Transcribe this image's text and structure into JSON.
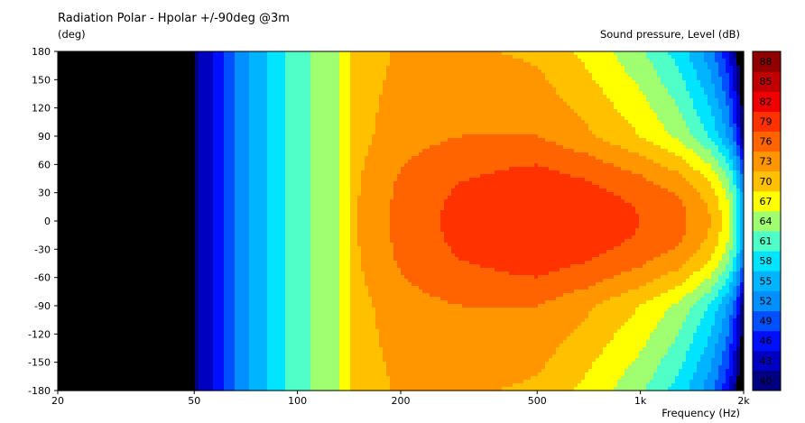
{
  "chart_data": {
    "type": "heatmap",
    "title": "Radiation Polar - Hpolar +/-90deg @3m",
    "y_unit_label": "(deg)",
    "colorbar_label": "Sound pressure, Level  (dB)",
    "xlabel": "Frequency  (Hz)",
    "x_scale": "log",
    "xlim": [
      20,
      2000
    ],
    "ylim": [
      -180,
      180
    ],
    "x_ticks": [
      {
        "value": 20,
        "label": "20"
      },
      {
        "value": 50,
        "label": "50"
      },
      {
        "value": 100,
        "label": "100"
      },
      {
        "value": 200,
        "label": "200"
      },
      {
        "value": 500,
        "label": "500"
      },
      {
        "value": 1000,
        "label": "1k"
      },
      {
        "value": 2000,
        "label": "2k"
      }
    ],
    "y_ticks": [
      {
        "value": 180,
        "label": "180"
      },
      {
        "value": 150,
        "label": "150"
      },
      {
        "value": 120,
        "label": "120"
      },
      {
        "value": 90,
        "label": "90"
      },
      {
        "value": 60,
        "label": "60"
      },
      {
        "value": 30,
        "label": "30"
      },
      {
        "value": 0,
        "label": "0"
      },
      {
        "value": -30,
        "label": "-30"
      },
      {
        "value": -60,
        "label": "-60"
      },
      {
        "value": -90,
        "label": "-90"
      },
      {
        "value": -120,
        "label": "-120"
      },
      {
        "value": -150,
        "label": "-150"
      },
      {
        "value": -180,
        "label": "-180"
      }
    ],
    "colorbar": {
      "levels": [
        40,
        43,
        46,
        49,
        52,
        55,
        58,
        61,
        64,
        67,
        70,
        73,
        76,
        79,
        82,
        85,
        88
      ],
      "colors": [
        "#000080",
        "#0000c0",
        "#0010ff",
        "#0050ff",
        "#0090ff",
        "#00b4ff",
        "#00e4ff",
        "#50ffc8",
        "#a0ff70",
        "#ffff00",
        "#ffc000",
        "#ff9600",
        "#ff6400",
        "#ff3200",
        "#f00000",
        "#c00000",
        "#900000"
      ],
      "below_color": "#000000"
    },
    "frequency_profile": [
      {
        "f": 20,
        "db": 20
      },
      {
        "f": 49,
        "db": 20
      },
      {
        "f": 51,
        "db": 43
      },
      {
        "f": 56,
        "db": 45
      },
      {
        "f": 64,
        "db": 51
      },
      {
        "f": 74,
        "db": 56
      },
      {
        "f": 85,
        "db": 59
      },
      {
        "f": 95,
        "db": 62
      },
      {
        "f": 110,
        "db": 64
      },
      {
        "f": 125,
        "db": 66
      },
      {
        "f": 140,
        "db": 68
      },
      {
        "f": 150,
        "db": 73
      },
      {
        "f": 200,
        "db": 77
      },
      {
        "f": 300,
        "db": 80
      },
      {
        "f": 500,
        "db": 82
      },
      {
        "f": 700,
        "db": 81
      },
      {
        "f": 1000,
        "db": 79
      },
      {
        "f": 1300,
        "db": 77
      },
      {
        "f": 1600,
        "db": 73
      },
      {
        "f": 1800,
        "db": 68
      },
      {
        "f": 1900,
        "db": 63
      },
      {
        "f": 2000,
        "db": 55
      }
    ],
    "off_axis_beaming": [
      {
        "f": 150,
        "db_per_90deg": 1
      },
      {
        "f": 300,
        "db_per_90deg": 4
      },
      {
        "f": 500,
        "db_per_90deg": 6
      },
      {
        "f": 1000,
        "db_per_90deg": 9
      },
      {
        "f": 2000,
        "db_per_90deg": 14
      }
    ]
  }
}
